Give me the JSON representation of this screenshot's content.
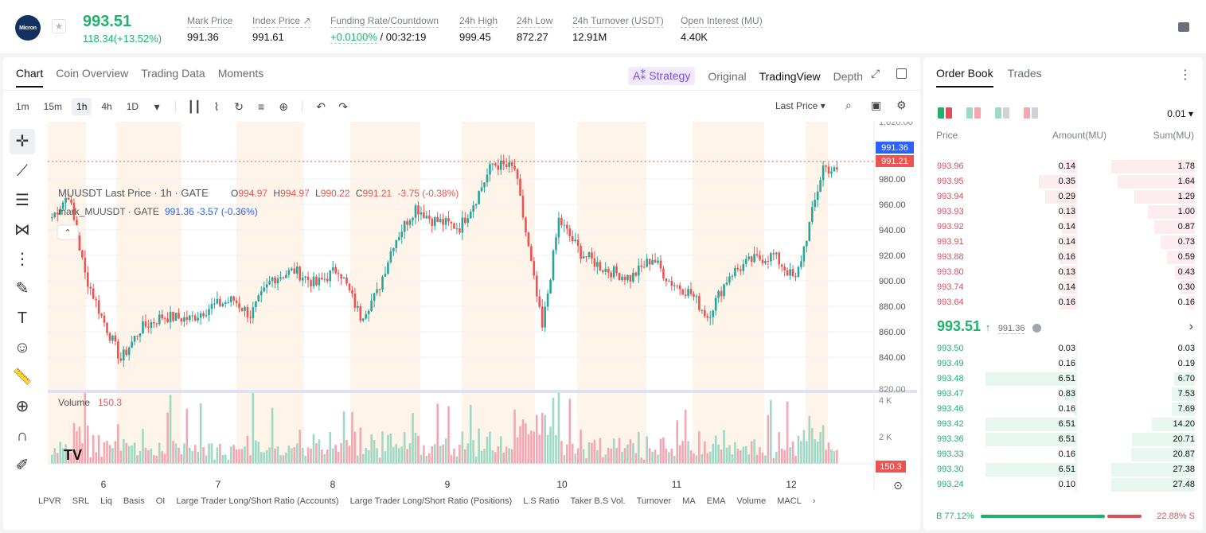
{
  "header": {
    "logo_text": "Micron",
    "last_price": "993.51",
    "change": "118.34(+13.52%)",
    "stats": [
      {
        "label": "Mark Price",
        "value": "991.36"
      },
      {
        "label": "Index Price ↗",
        "value": "991.61"
      },
      {
        "label": "Funding Rate/Countdown",
        "value_green": "+0.0100%",
        "value": " / 00:32:19"
      },
      {
        "label": "24h High",
        "value": "999.45"
      },
      {
        "label": "24h Low",
        "value": "872.27"
      },
      {
        "label": "24h Turnover (USDT)",
        "value": "12.91M"
      },
      {
        "label": "Open Interest (MU)",
        "value": "4.40K"
      }
    ]
  },
  "chart_panel": {
    "tabs": [
      "Chart",
      "Coin Overview",
      "Trading Data",
      "Moments"
    ],
    "active_tab": 0,
    "strategy": "A⁑ Strategy",
    "views": [
      "Original",
      "TradingView",
      "Depth"
    ],
    "active_view": 1,
    "timeframes": [
      "1m",
      "15m",
      "1h",
      "4h",
      "1D"
    ],
    "active_timeframe": 2,
    "price_type": "Last Price",
    "legend_main": "MUUSDT Last Price · 1h · GATE",
    "ohlc": {
      "o": "994.97",
      "h": "994.97",
      "l": "990.22",
      "c": "991.21",
      "chg": "-3.75 (-0.38%)"
    },
    "legend_mark": "mark_MUUSDT · GATE",
    "mark_vals": "991.36  -3.57 (-0.36%)",
    "volume_label": "Volume",
    "volume_value": "150.3",
    "bottom_tags": [
      "LPVR",
      "SRL",
      "Liq",
      "Basis",
      "OI",
      "Large Trader Long/Short Ratio (Accounts)",
      "Large Trader Long/Short Ratio (Positions)",
      "L.S Ratio",
      "Taker B.S Vol.",
      "Turnover",
      "MA",
      "EMA",
      "Volume",
      "MACL"
    ]
  },
  "chart_data": {
    "type": "candlestick",
    "price_axis": {
      "ticks": [
        840,
        860,
        880,
        900,
        920,
        940,
        960,
        980
      ],
      "range": [
        815,
        1025
      ],
      "top_label": "1,020.00",
      "bottom_label": "820.00"
    },
    "volume_axis": {
      "ticks": [
        "2 K",
        "4 K"
      ]
    },
    "x_ticks": [
      "6",
      "7",
      "8",
      "9",
      "10",
      "11",
      "12"
    ],
    "mark_price_tag": "991.36",
    "last_price_tag": "991.21",
    "volume_tag": "150.3",
    "colors": {
      "up": "#26a69a",
      "down": "#ef5350",
      "vol_up": "#9fd9c6",
      "vol_down": "#f4a7b2",
      "session": "#fff4ea"
    },
    "anchors": [
      [
        0,
        950
      ],
      [
        6,
        968
      ],
      [
        12,
        905
      ],
      [
        18,
        872
      ],
      [
        25,
        838
      ],
      [
        32,
        862
      ],
      [
        40,
        872
      ],
      [
        50,
        870
      ],
      [
        58,
        880
      ],
      [
        66,
        885
      ],
      [
        72,
        873
      ],
      [
        80,
        902
      ],
      [
        88,
        908
      ],
      [
        96,
        897
      ],
      [
        104,
        910
      ],
      [
        112,
        872
      ],
      [
        118,
        890
      ],
      [
        124,
        930
      ],
      [
        132,
        958
      ],
      [
        138,
        948
      ],
      [
        148,
        942
      ],
      [
        154,
        965
      ],
      [
        160,
        992
      ],
      [
        168,
        988
      ],
      [
        172,
        938
      ],
      [
        178,
        862
      ],
      [
        184,
        948
      ],
      [
        192,
        922
      ],
      [
        200,
        910
      ],
      [
        210,
        902
      ],
      [
        218,
        918
      ],
      [
        224,
        900
      ],
      [
        232,
        890
      ],
      [
        238,
        872
      ],
      [
        246,
        905
      ],
      [
        254,
        916
      ],
      [
        262,
        920
      ],
      [
        270,
        900
      ],
      [
        274,
        935
      ],
      [
        280,
        990
      ],
      [
        285,
        985
      ]
    ]
  },
  "order_book": {
    "tabs": [
      "Order Book",
      "Trades"
    ],
    "precision": "0.01",
    "headers": [
      "Price",
      "Amount(MU)",
      "Sum(MU)"
    ],
    "asks": [
      {
        "price": "993.96",
        "amount": "0.14",
        "sum": "1.78"
      },
      {
        "price": "993.95",
        "amount": "0.35",
        "sum": "1.64"
      },
      {
        "price": "993.94",
        "amount": "0.29",
        "sum": "1.29"
      },
      {
        "price": "993.93",
        "amount": "0.13",
        "sum": "1.00"
      },
      {
        "price": "993.92",
        "amount": "0.14",
        "sum": "0.87"
      },
      {
        "price": "993.91",
        "amount": "0.14",
        "sum": "0.73"
      },
      {
        "price": "993.88",
        "amount": "0.16",
        "sum": "0.59"
      },
      {
        "price": "993.80",
        "amount": "0.13",
        "sum": "0.43"
      },
      {
        "price": "993.74",
        "amount": "0.14",
        "sum": "0.30"
      },
      {
        "price": "993.64",
        "amount": "0.16",
        "sum": "0.16"
      }
    ],
    "mid_price": "993.51",
    "mid_mark": "991.36",
    "bids": [
      {
        "price": "993.50",
        "amount": "0.03",
        "sum": "0.03"
      },
      {
        "price": "993.49",
        "amount": "0.16",
        "sum": "0.19"
      },
      {
        "price": "993.48",
        "amount": "6.51",
        "sum": "6.70"
      },
      {
        "price": "993.47",
        "amount": "0.83",
        "sum": "7.53"
      },
      {
        "price": "993.46",
        "amount": "0.16",
        "sum": "7.69"
      },
      {
        "price": "993.42",
        "amount": "6.51",
        "sum": "14.20"
      },
      {
        "price": "993.36",
        "amount": "6.51",
        "sum": "20.71"
      },
      {
        "price": "993.33",
        "amount": "0.16",
        "sum": "20.87"
      },
      {
        "price": "993.30",
        "amount": "6.51",
        "sum": "27.38"
      },
      {
        "price": "993.24",
        "amount": "0.10",
        "sum": "27.48"
      }
    ],
    "buy_ratio": "B 77.12%",
    "sell_ratio": "22.88% S",
    "buy_pct": 77.12
  }
}
